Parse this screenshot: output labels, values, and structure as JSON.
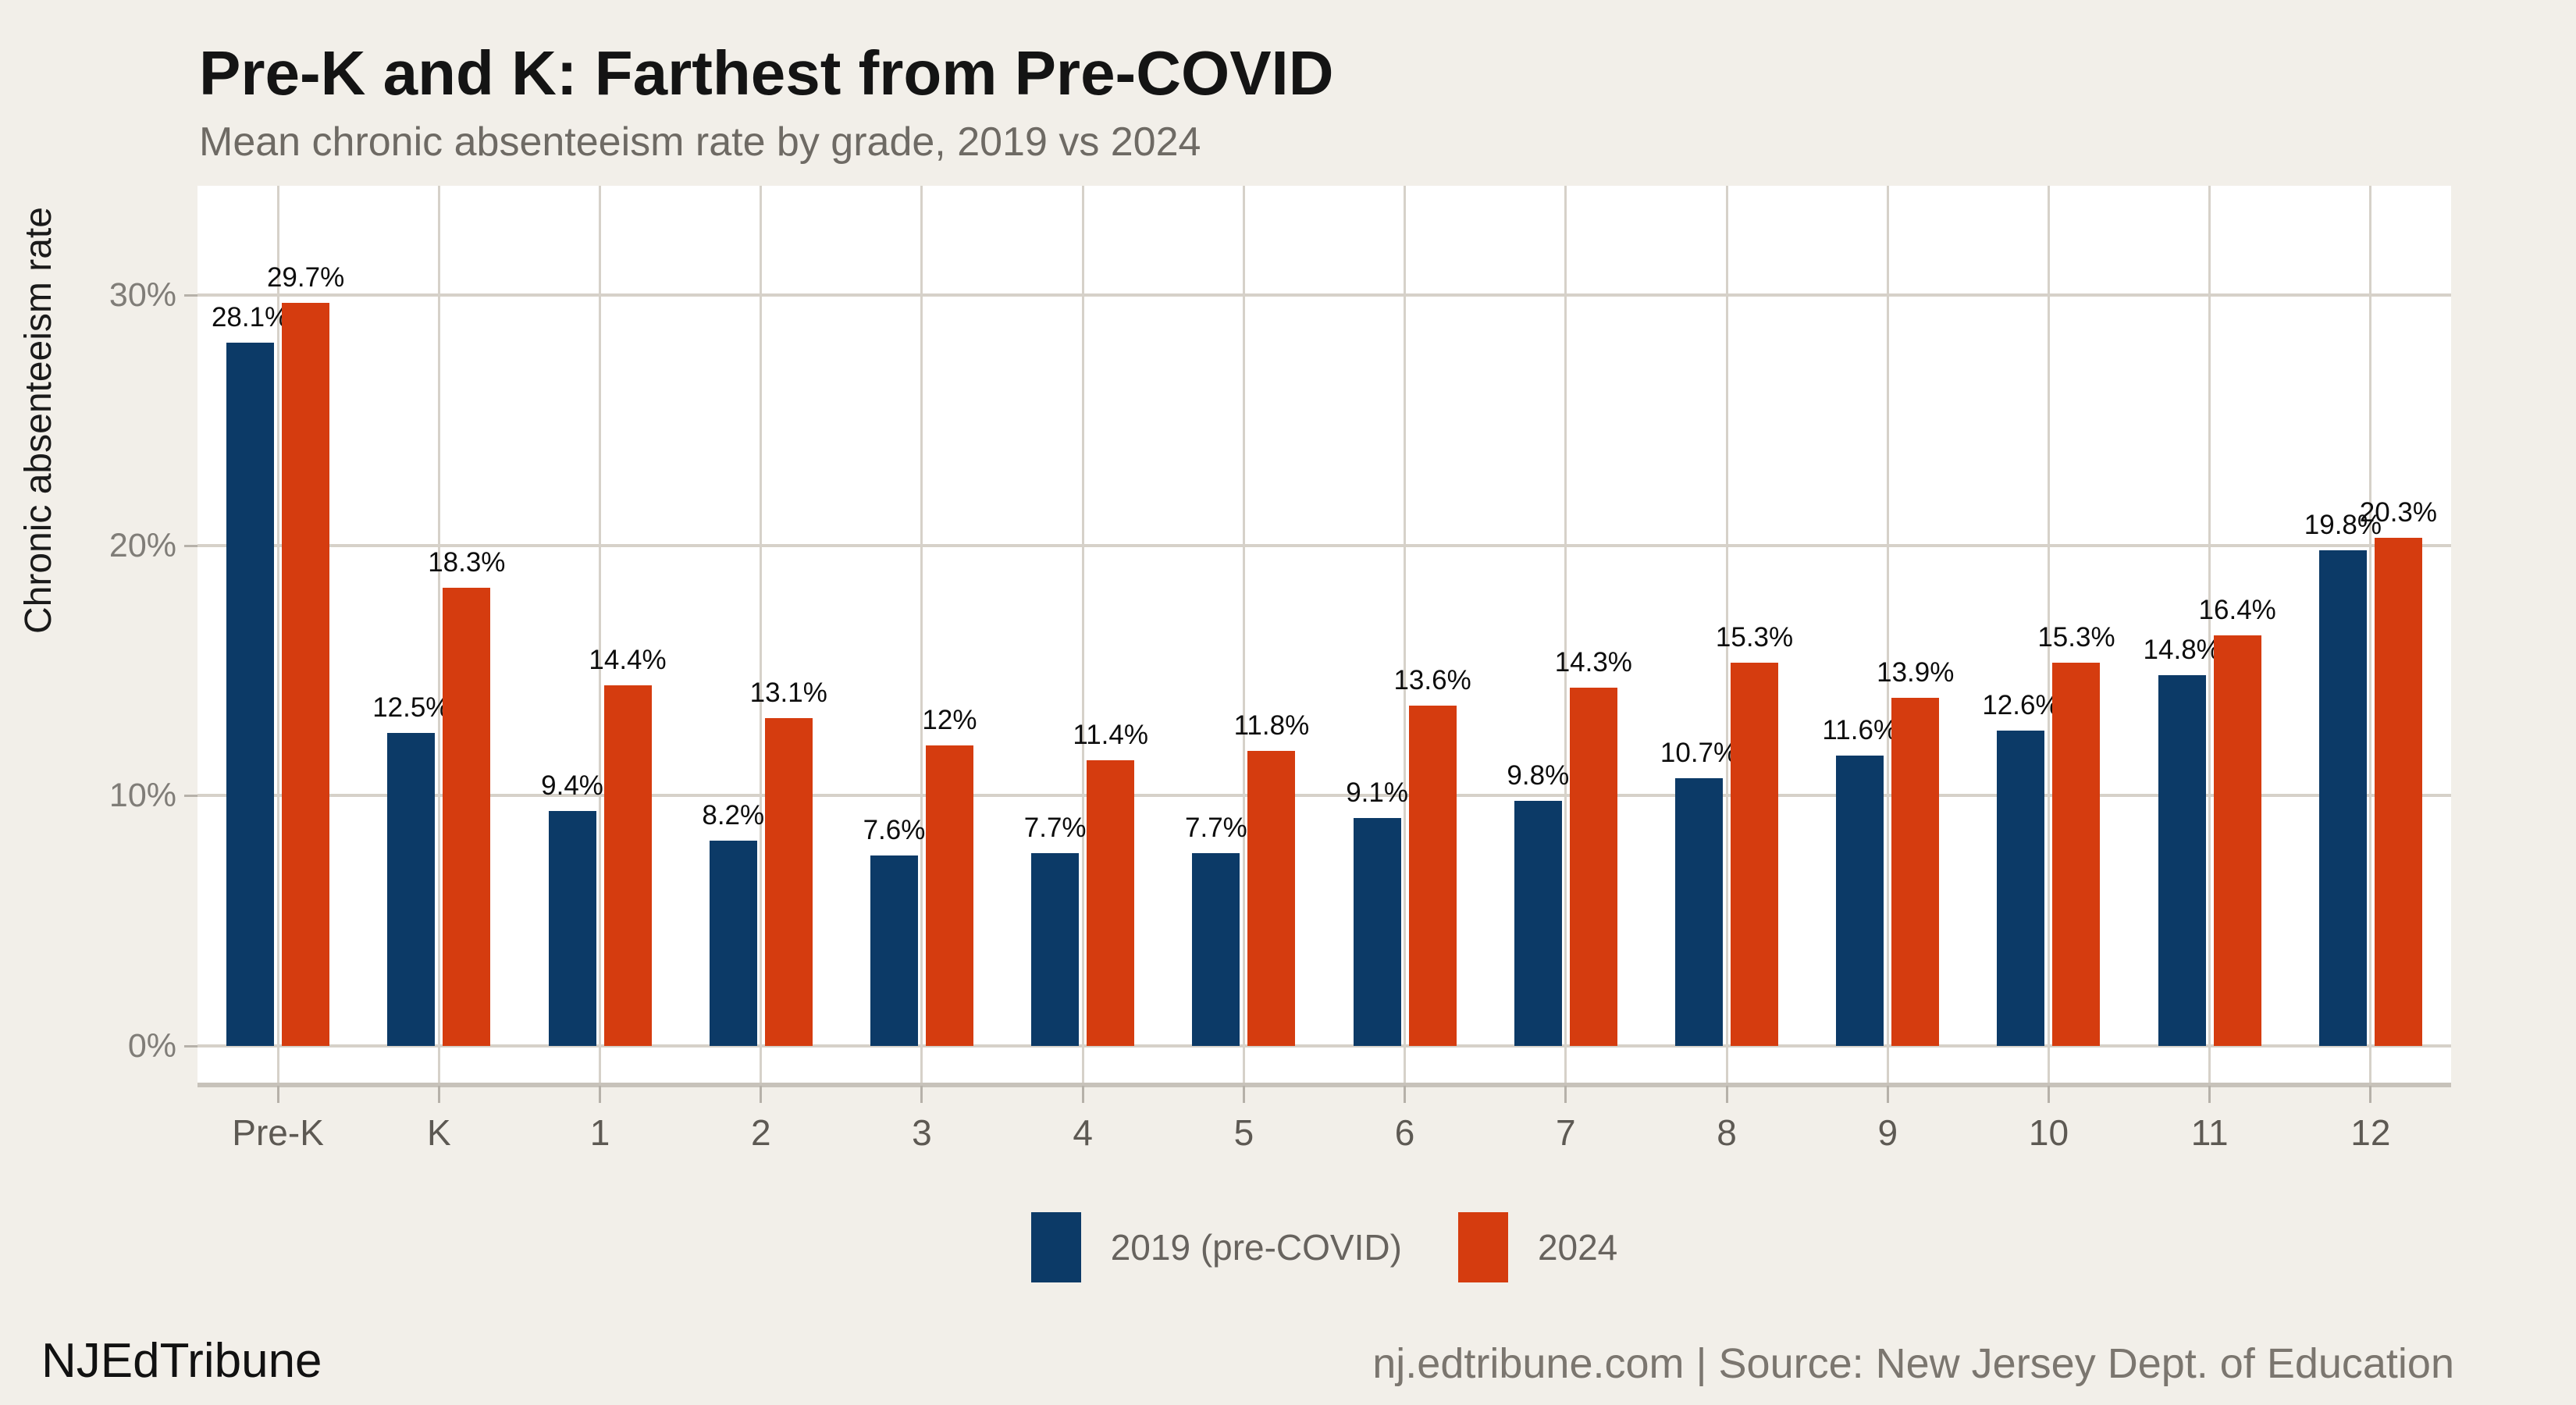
{
  "header": {
    "title": "Pre-K and K: Farthest from Pre-COVID",
    "subtitle": "Mean chronic absenteeism rate by grade, 2019 vs 2024"
  },
  "chart_data": {
    "type": "bar",
    "title": "Pre-K and K: Farthest from Pre-COVID",
    "subtitle": "Mean chronic absenteeism rate by grade, 2019 vs 2024",
    "categories": [
      "Pre-K",
      "K",
      "1",
      "2",
      "3",
      "4",
      "5",
      "6",
      "7",
      "8",
      "9",
      "10",
      "11",
      "12"
    ],
    "series": [
      {
        "name": "2019 (pre-COVID)",
        "color": "#0c3a67",
        "values": [
          28.1,
          12.5,
          9.4,
          8.2,
          7.6,
          7.7,
          7.7,
          9.1,
          9.8,
          10.7,
          11.6,
          12.6,
          14.8,
          19.8
        ]
      },
      {
        "name": "2024",
        "color": "#d53c0f",
        "values": [
          29.7,
          18.3,
          14.4,
          13.1,
          12,
          11.4,
          11.8,
          13.6,
          14.3,
          15.3,
          13.9,
          15.3,
          16.4,
          20.3
        ]
      }
    ],
    "value_suffix": "%",
    "xlabel": "",
    "ylabel": "Chronic absenteeism rate",
    "y_ticks": [
      0,
      10,
      20,
      30
    ],
    "y_tick_labels": [
      "0%",
      "10%",
      "20%",
      "30%"
    ],
    "ylim": [
      0,
      34.4
    ],
    "grid": true,
    "legend_position": "bottom",
    "data_labels": true
  },
  "legend": {
    "items": [
      {
        "label": "2019 (pre-COVID)",
        "color": "#0c3a67"
      },
      {
        "label": "2024",
        "color": "#d53c0f"
      }
    ]
  },
  "footer": {
    "brand": "NJEdTribune",
    "source": "nj.edtribune.com | Source: New Jersey Dept. of Education"
  },
  "colors": {
    "background": "#f2efe9",
    "panel": "#ffffff",
    "gridline": "#d6d1c9",
    "axis_line": "#c7c2ba",
    "series_2019": "#0c3a67",
    "series_2024": "#d53c0f"
  }
}
